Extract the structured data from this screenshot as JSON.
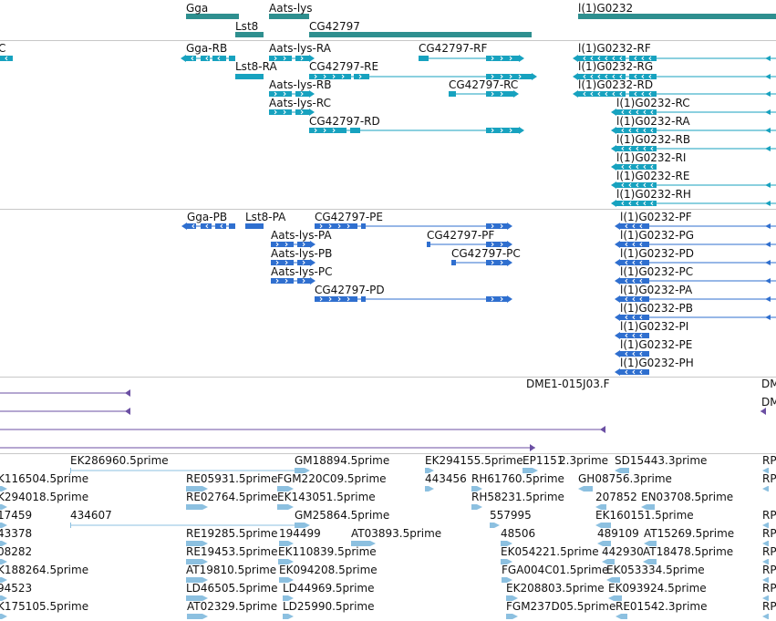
{
  "app": {
    "name": "genome-browser-view"
  },
  "colors": {
    "gene": "#2e8f8f",
    "transcript": "#17a2bf",
    "protein": "#2f6fcf",
    "clone": "#6b4fa3",
    "est": "#8cc0e0",
    "separator": "#c8c8c8",
    "text": "#111111"
  },
  "tracks": {
    "gene": {
      "features": [
        {
          "label": "Gga"
        },
        {
          "label": "Aats-lys"
        },
        {
          "label": "l(1)G0232"
        },
        {
          "label": "Lst8"
        },
        {
          "label": "CG42797"
        }
      ]
    },
    "transcript": {
      "features": [
        {
          "label": "C"
        },
        {
          "label": "Gga-RB"
        },
        {
          "label": "Aats-lys-RA"
        },
        {
          "label": "CG42797-RF"
        },
        {
          "label": "l(1)G0232-RF"
        },
        {
          "label": "Lst8-RA"
        },
        {
          "label": "CG42797-RE"
        },
        {
          "label": "l(1)G0232-RG"
        },
        {
          "label": "Aats-lys-RB"
        },
        {
          "label": "CG42797-RC"
        },
        {
          "label": "l(1)G0232-RD"
        },
        {
          "label": "Aats-lys-RC"
        },
        {
          "label": "l(1)G0232-RC"
        },
        {
          "label": "CG42797-RD"
        },
        {
          "label": "l(1)G0232-RA"
        },
        {
          "label": "l(1)G0232-RB"
        },
        {
          "label": "l(1)G0232-RI"
        },
        {
          "label": "l(1)G0232-RE"
        },
        {
          "label": "l(1)G0232-RH"
        }
      ]
    },
    "protein": {
      "features": [
        {
          "label": "Gga-PB"
        },
        {
          "label": "Lst8-PA"
        },
        {
          "label": "CG42797-PE"
        },
        {
          "label": "l(1)G0232-PF"
        },
        {
          "label": "Aats-lys-PA"
        },
        {
          "label": "CG42797-PF"
        },
        {
          "label": "l(1)G0232-PG"
        },
        {
          "label": "Aats-lys-PB"
        },
        {
          "label": "CG42797-PC"
        },
        {
          "label": "l(1)G0232-PD"
        },
        {
          "label": "Aats-lys-PC"
        },
        {
          "label": "l(1)G0232-PC"
        },
        {
          "label": "CG42797-PD"
        },
        {
          "label": "l(1)G0232-PA"
        },
        {
          "label": "l(1)G0232-PB"
        },
        {
          "label": "l(1)G0232-PI"
        },
        {
          "label": "l(1)G0232-PE"
        },
        {
          "label": "l(1)G0232-PH"
        }
      ]
    },
    "clone": {
      "features": [
        {
          "label": "DME1-015J03.F"
        },
        {
          "label": "DM"
        },
        {
          "label": "DM"
        },
        {
          "label": ""
        },
        {
          "label": ""
        },
        {
          "label": ""
        },
        {
          "label": ""
        }
      ]
    },
    "est": {
      "features": [
        {
          "label": "EK286960.5prime"
        },
        {
          "label": "GM18894.5prime"
        },
        {
          "label": "EK294155.5prime"
        },
        {
          "label": "EP1151"
        },
        {
          "label": "2.3prime"
        },
        {
          "label": "SD15443.3prime"
        },
        {
          "label": "RP"
        },
        {
          "label": "K116504.5prime"
        },
        {
          "label": "RE05931.5prime"
        },
        {
          "label": "FGM220C09.5prime"
        },
        {
          "label": "443456"
        },
        {
          "label": "RH61760.5prime"
        },
        {
          "label": "GH08756.3prime"
        },
        {
          "label": "RP"
        },
        {
          "label": "K294018.5prime"
        },
        {
          "label": "RE02764.5prime"
        },
        {
          "label": "EK143051.5prime"
        },
        {
          "label": "RH58231.5prime"
        },
        {
          "label": "207852"
        },
        {
          "label": "EN03708.5prime"
        },
        {
          "label": "17459"
        },
        {
          "label": "434607"
        },
        {
          "label": "GM25864.5prime"
        },
        {
          "label": "557995"
        },
        {
          "label": "EK160151.5prime"
        },
        {
          "label": "RP"
        },
        {
          "label": "43378"
        },
        {
          "label": "RE19285.5prime"
        },
        {
          "label": "194499"
        },
        {
          "label": "AT03893.5prime"
        },
        {
          "label": "48506"
        },
        {
          "label": "489109"
        },
        {
          "label": "AT15269.5prime"
        },
        {
          "label": "RP"
        },
        {
          "label": "08282"
        },
        {
          "label": "RE19453.5prime"
        },
        {
          "label": "EK110839.5prime"
        },
        {
          "label": "EK054221.5prime"
        },
        {
          "label": "442930"
        },
        {
          "label": "AT18478.5prime"
        },
        {
          "label": "RP"
        },
        {
          "label": "K188264.5prime"
        },
        {
          "label": "AT19810.5prime"
        },
        {
          "label": "EK094208.5prime"
        },
        {
          "label": "FGA004C01.5prime"
        },
        {
          "label": "EK053334.5prime"
        },
        {
          "label": "RP"
        },
        {
          "label": "94523"
        },
        {
          "label": "LD46505.5prime"
        },
        {
          "label": "LD44969.5prime"
        },
        {
          "label": "EK208803.5prime"
        },
        {
          "label": "EK093924.5prime"
        },
        {
          "label": "RP"
        },
        {
          "label": "K175105.5prime"
        },
        {
          "label": "AT02329.5prime"
        },
        {
          "label": "LD25990.5prime"
        },
        {
          "label": "FGM237D05.5prime"
        },
        {
          "label": "RE01542.3prime"
        },
        {
          "label": "RP"
        }
      ]
    }
  }
}
